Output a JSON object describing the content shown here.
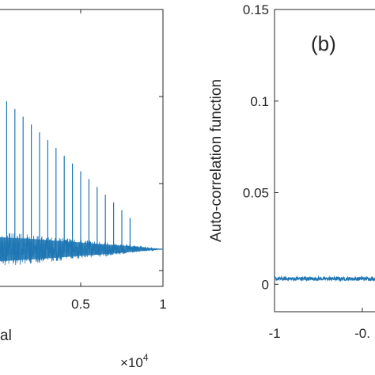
{
  "chart_data": [
    {
      "type": "line",
      "panel": "a",
      "xlim": [
        0,
        1
      ],
      "x_multiplier_label": "×10^4",
      "x_ticks": [
        0.5,
        1
      ],
      "x_tick_labels": [
        "0.5",
        "1"
      ],
      "xlabel_visible": "al",
      "series_color": "#1f77b4",
      "series": [
        {
          "spike_x": [
            0.0,
            0.05,
            0.1,
            0.15,
            0.2,
            0.25,
            0.3,
            0.35,
            0.4,
            0.45,
            0.5,
            0.55,
            0.6,
            0.65,
            0.7,
            0.75,
            0.8
          ],
          "noise_envelope_x": [
            0.0,
            0.25,
            0.5,
            0.75,
            1.0
          ],
          "noise_envelope_halfwidth_fraction": [
            1.0,
            0.8,
            0.55,
            0.3,
            0.0
          ]
        }
      ],
      "grid": false
    },
    {
      "type": "line",
      "panel": "b",
      "panel_label": "(b)",
      "ylabel": "Auto-correlation function",
      "ylim": [
        -0.015,
        0.15
      ],
      "y_ticks": [
        0,
        0.05,
        0.1,
        0.15
      ],
      "y_tick_labels": [
        "0",
        "0.05",
        "0.1",
        "0.15"
      ],
      "x_tick_labels": [
        "-1",
        "-0."
      ],
      "series_color": "#1f77b4",
      "series": [
        {
          "baseline_value": 0.003,
          "noise_amplitude": 0.001
        }
      ],
      "grid": false
    }
  ]
}
